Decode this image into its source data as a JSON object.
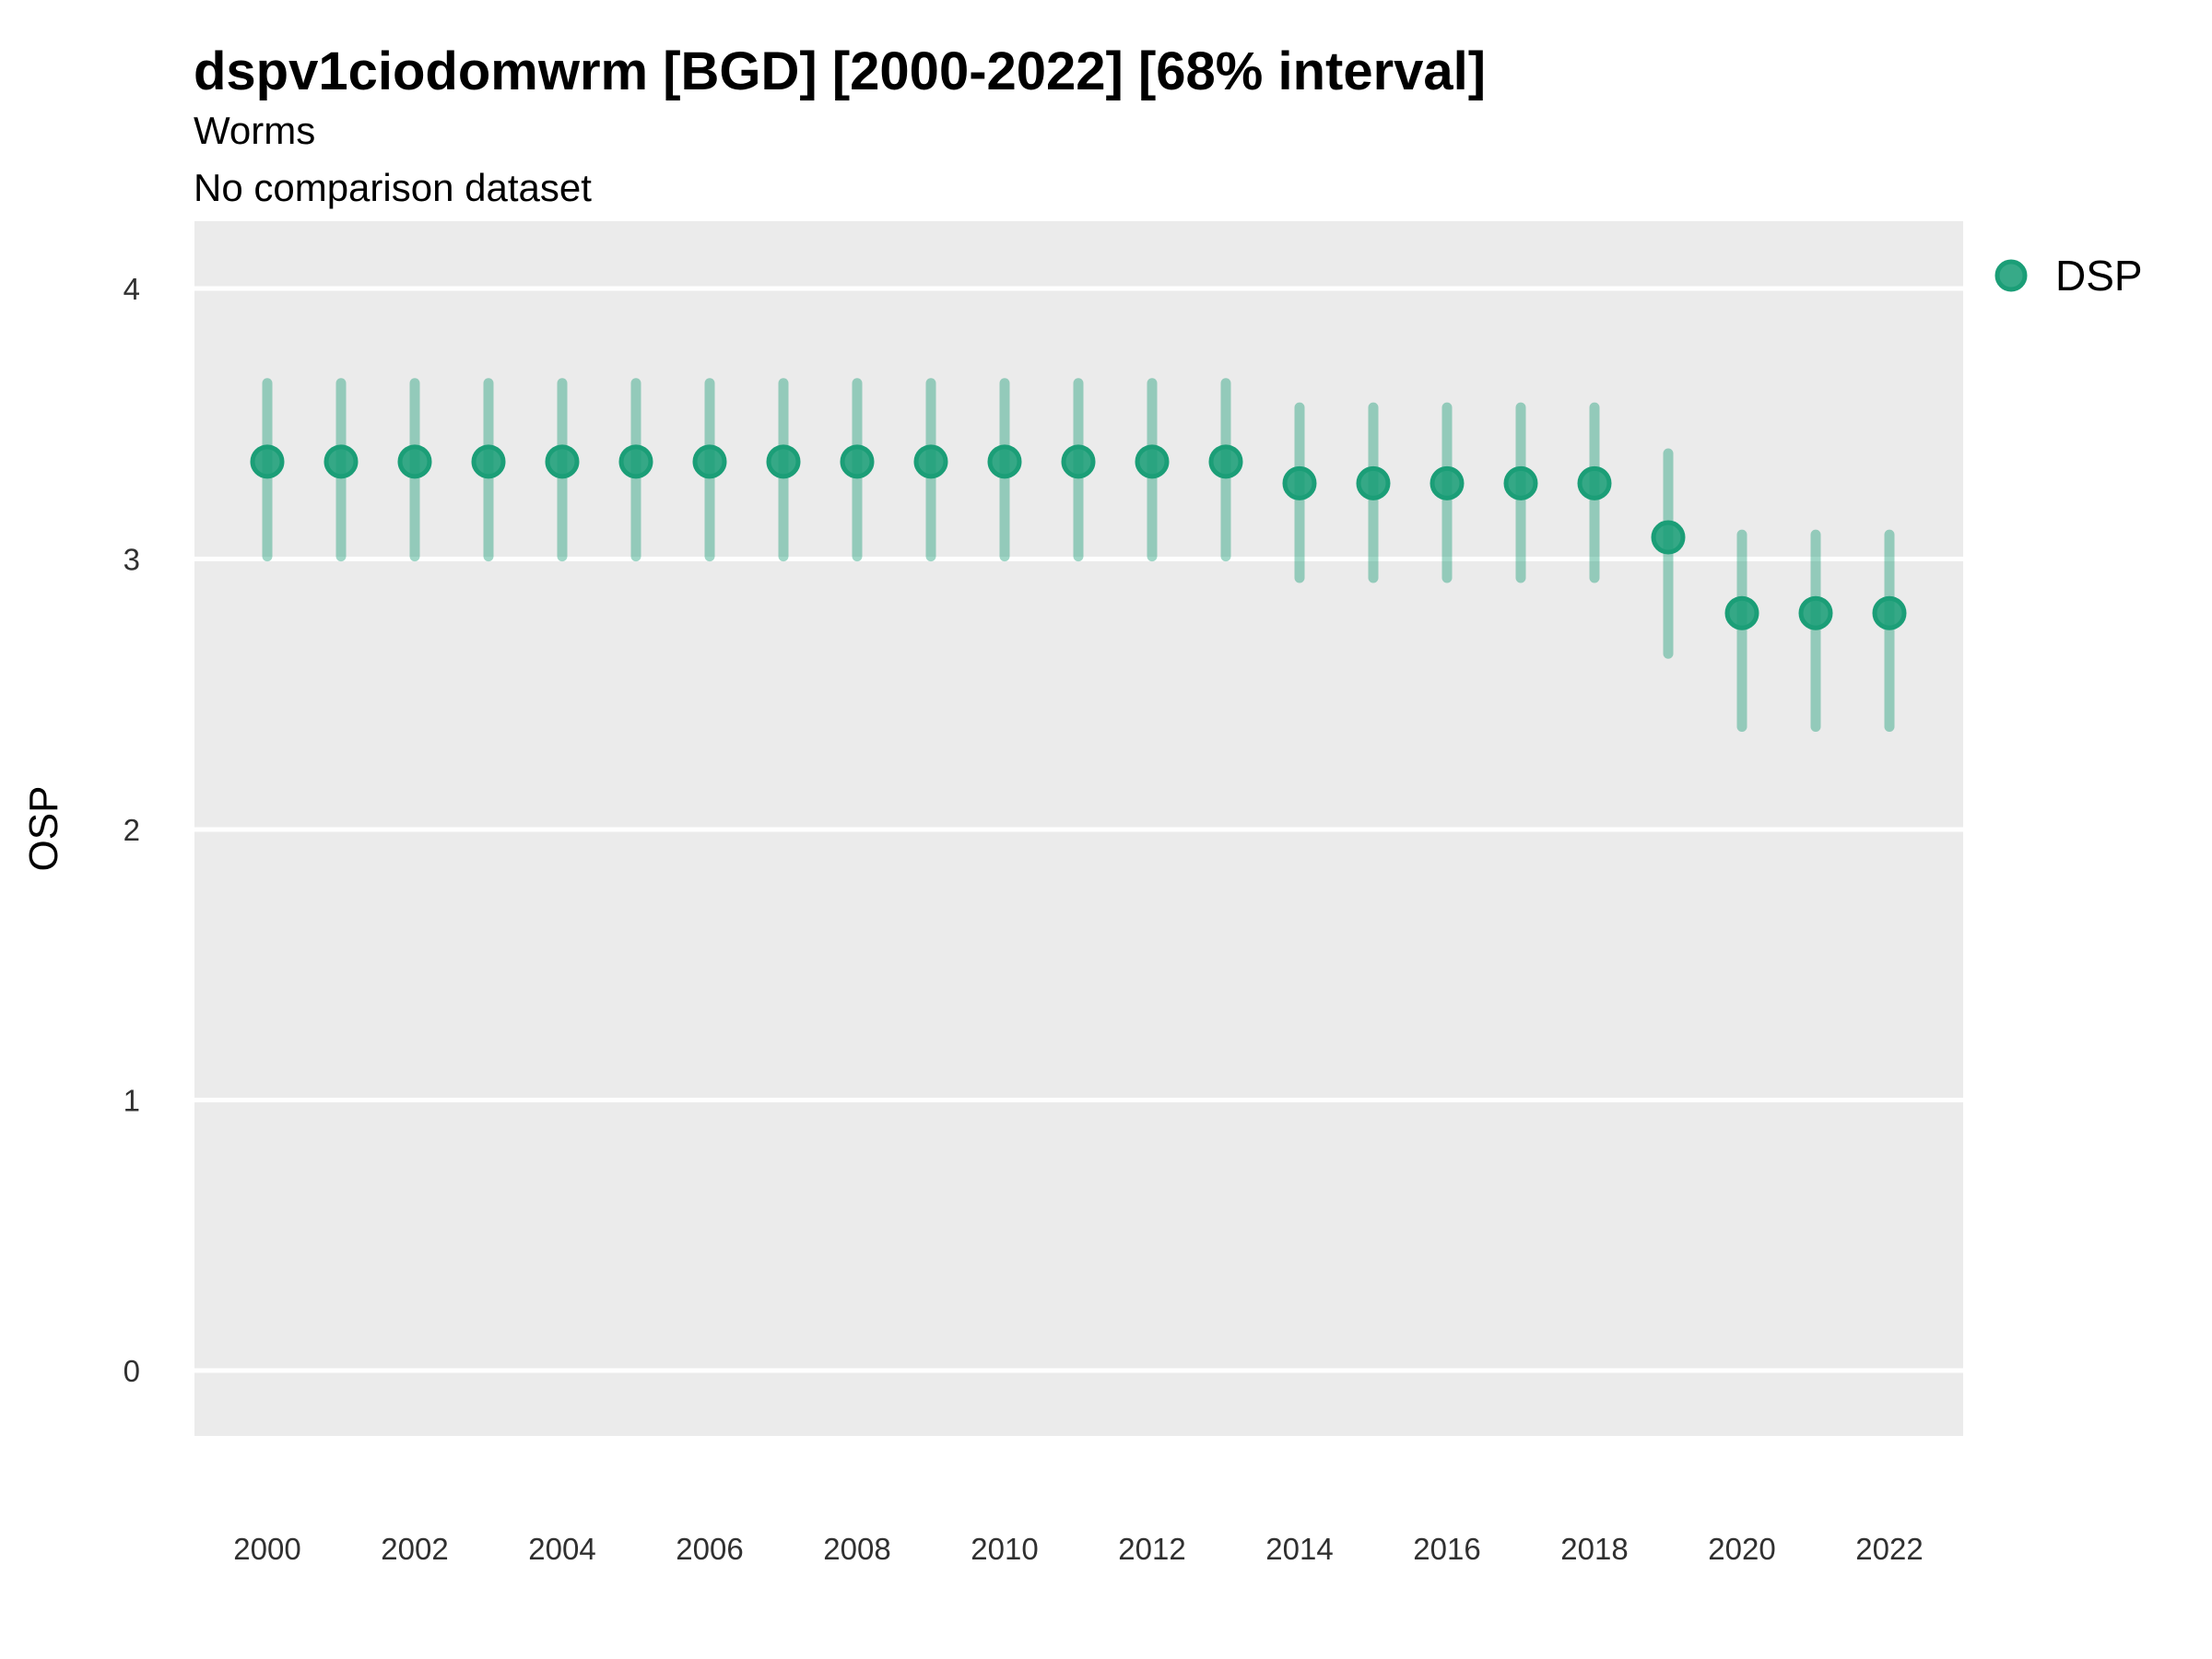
{
  "header": {
    "title": "dspv1ciodomwrm [BGD] [2000-2022] [68% interval]",
    "subtitle1": "Worms",
    "subtitle2": "No comparison dataset"
  },
  "axes": {
    "y_title": "OSP",
    "x_title": "",
    "y_tick_labels": [
      "4",
      "3",
      "2",
      "1",
      "0"
    ],
    "x_tick_labels": [
      "2000",
      "2002",
      "2004",
      "2006",
      "2008",
      "2010",
      "2012",
      "2014",
      "2016",
      "2018",
      "2020",
      "2022"
    ]
  },
  "legend": {
    "items": [
      {
        "label": "DSP",
        "marker": "circle-icon",
        "color": "#1b9e77"
      }
    ]
  },
  "colors": {
    "point_fill": "#1b9e77",
    "point_fill_opacity": 0.88,
    "point_stroke": "#1b9e77",
    "errorbar": "#1b9e77",
    "errorbar_opacity": 0.42,
    "panel_background": "#ebebeb",
    "gridline": "#ffffff",
    "page_background": "#ffffff"
  },
  "chart_data": {
    "type": "scatter",
    "subtype": "pointrange-interval",
    "title": "dspv1ciodomwrm [BGD] [2000-2022] [68% interval]",
    "subtitle": [
      "Worms",
      "No comparison dataset"
    ],
    "interval": "68%",
    "xlabel": "",
    "ylabel": "OSP",
    "x": [
      2000,
      2001,
      2002,
      2003,
      2004,
      2005,
      2006,
      2007,
      2008,
      2009,
      2010,
      2011,
      2012,
      2013,
      2014,
      2015,
      2016,
      2017,
      2018,
      2019,
      2020,
      2021,
      2022
    ],
    "series": [
      {
        "name": "DSP",
        "values": [
          3.36,
          3.36,
          3.36,
          3.36,
          3.36,
          3.36,
          3.36,
          3.36,
          3.36,
          3.36,
          3.36,
          3.36,
          3.36,
          3.36,
          3.28,
          3.28,
          3.28,
          3.28,
          3.28,
          3.08,
          2.8,
          2.8,
          2.8
        ],
        "lower_68": [
          3.01,
          3.01,
          3.01,
          3.01,
          3.01,
          3.01,
          3.01,
          3.01,
          3.01,
          3.01,
          3.01,
          3.01,
          3.01,
          3.01,
          2.93,
          2.93,
          2.93,
          2.93,
          2.93,
          2.65,
          2.38,
          2.38,
          2.38
        ],
        "upper_68": [
          3.65,
          3.65,
          3.65,
          3.65,
          3.65,
          3.65,
          3.65,
          3.65,
          3.65,
          3.65,
          3.65,
          3.65,
          3.65,
          3.65,
          3.56,
          3.56,
          3.56,
          3.56,
          3.56,
          3.39,
          3.09,
          3.09,
          3.09
        ]
      }
    ],
    "ylim": [
      -0.25,
      4.25
    ],
    "yticks": [
      0,
      1,
      2,
      3,
      4
    ],
    "xticks": [
      2000,
      2002,
      2004,
      2006,
      2008,
      2010,
      2012,
      2014,
      2016,
      2018,
      2020,
      2022
    ],
    "grid": "horizontal major only, white lines on gray panel",
    "legend_position": "right"
  }
}
